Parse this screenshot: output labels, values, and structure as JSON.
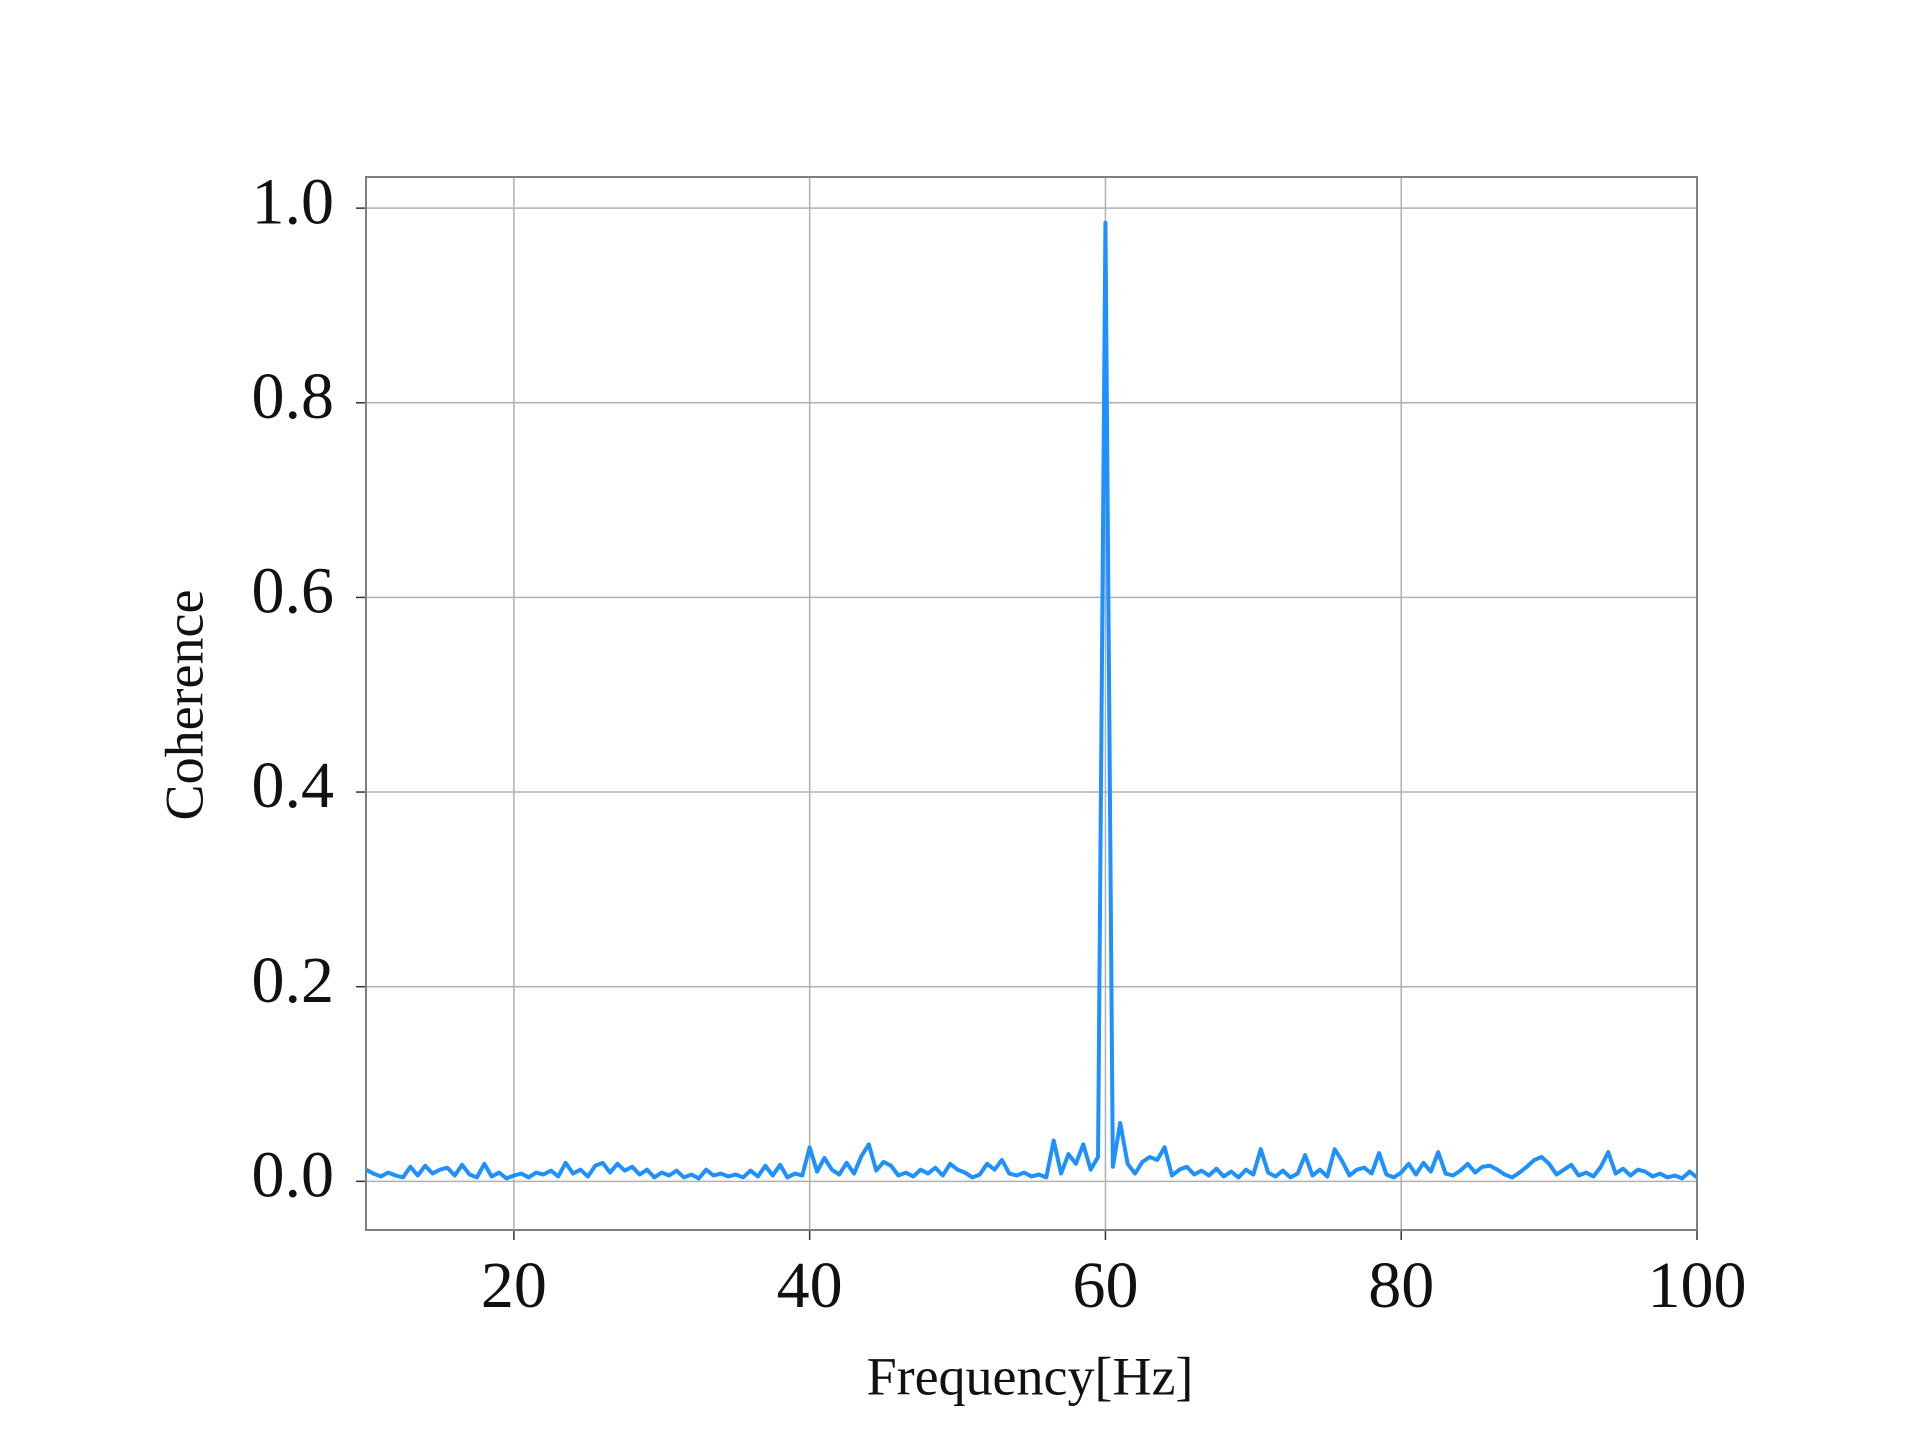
{
  "chart_data": {
    "type": "line",
    "xlabel": "Frequency[Hz]",
    "ylabel": "Coherence",
    "color": "#1e90ff",
    "grid": true,
    "xlim": [
      10,
      100
    ],
    "ylim": [
      -0.05,
      1.032
    ],
    "xticks": [
      20,
      40,
      60,
      80,
      100
    ],
    "yticks": [
      {
        "value": 0,
        "label": "0.0"
      },
      0.2,
      0.4,
      0.6,
      0.8,
      {
        "value": 1,
        "label": "1.0"
      }
    ],
    "x": [
      10,
      10.5,
      11,
      11.5,
      12,
      12.5,
      13,
      13.5,
      14,
      14.5,
      15,
      15.5,
      16,
      16.5,
      17,
      17.5,
      18,
      18.5,
      19,
      19.5,
      20,
      20.5,
      21,
      21.5,
      22,
      22.5,
      23,
      23.5,
      24,
      24.5,
      25,
      25.5,
      26,
      26.5,
      27,
      27.5,
      28,
      28.5,
      29,
      29.5,
      30,
      30.5,
      31,
      31.5,
      32,
      32.5,
      33,
      33.5,
      34,
      34.5,
      35,
      35.5,
      36,
      36.5,
      37,
      37.5,
      38,
      38.5,
      39,
      39.5,
      40,
      40.5,
      41,
      41.5,
      42,
      42.5,
      43,
      43.5,
      44,
      44.5,
      45,
      45.5,
      46,
      46.5,
      47,
      47.5,
      48,
      48.5,
      49,
      49.5,
      50,
      50.5,
      51,
      51.5,
      52,
      52.5,
      53,
      53.5,
      54,
      54.5,
      55,
      55.5,
      56,
      56.5,
      57,
      57.5,
      58,
      58.5,
      59,
      59.5,
      60,
      60.5,
      61,
      61.5,
      62,
      62.5,
      63,
      63.5,
      64,
      64.5,
      65,
      65.5,
      66,
      66.5,
      67,
      67.5,
      68,
      68.5,
      69,
      69.5,
      70,
      70.5,
      71,
      71.5,
      72,
      72.5,
      73,
      73.5,
      74,
      74.5,
      75,
      75.5,
      76,
      76.5,
      77,
      77.5,
      78,
      78.5,
      79,
      79.5,
      80,
      80.5,
      81,
      81.5,
      82,
      82.5,
      83,
      83.5,
      84,
      84.5,
      85,
      85.5,
      86,
      86.5,
      87,
      87.5,
      88,
      88.5,
      89,
      89.5,
      90,
      90.5,
      91,
      91.5,
      92,
      92.5,
      93,
      93.5,
      94,
      94.5,
      95,
      95.5,
      96,
      96.5,
      97,
      97.5,
      98,
      98.5,
      99,
      99.5,
      100
    ],
    "values": [
      0.012,
      0.008,
      0.005,
      0.009,
      0.006,
      0.004,
      0.015,
      0.006,
      0.016,
      0.008,
      0.012,
      0.014,
      0.006,
      0.017,
      0.007,
      0.004,
      0.018,
      0.005,
      0.009,
      0.003,
      0.006,
      0.008,
      0.004,
      0.009,
      0.007,
      0.011,
      0.005,
      0.019,
      0.008,
      0.012,
      0.005,
      0.016,
      0.019,
      0.009,
      0.018,
      0.011,
      0.015,
      0.007,
      0.012,
      0.004,
      0.009,
      0.006,
      0.011,
      0.004,
      0.007,
      0.003,
      0.012,
      0.006,
      0.008,
      0.005,
      0.007,
      0.004,
      0.011,
      0.005,
      0.016,
      0.006,
      0.017,
      0.004,
      0.008,
      0.006,
      0.035,
      0.01,
      0.024,
      0.012,
      0.007,
      0.019,
      0.008,
      0.026,
      0.038,
      0.011,
      0.02,
      0.016,
      0.006,
      0.009,
      0.005,
      0.012,
      0.008,
      0.014,
      0.006,
      0.018,
      0.012,
      0.009,
      0.004,
      0.007,
      0.018,
      0.012,
      0.022,
      0.008,
      0.006,
      0.009,
      0.005,
      0.007,
      0.004,
      0.042,
      0.008,
      0.028,
      0.018,
      0.038,
      0.012,
      0.025,
      0.985,
      0.015,
      0.06,
      0.018,
      0.008,
      0.02,
      0.025,
      0.022,
      0.035,
      0.006,
      0.012,
      0.015,
      0.007,
      0.011,
      0.006,
      0.013,
      0.005,
      0.01,
      0.004,
      0.012,
      0.007,
      0.033,
      0.009,
      0.005,
      0.011,
      0.004,
      0.008,
      0.027,
      0.006,
      0.012,
      0.005,
      0.033,
      0.021,
      0.006,
      0.012,
      0.014,
      0.008,
      0.029,
      0.007,
      0.004,
      0.009,
      0.018,
      0.007,
      0.019,
      0.01,
      0.03,
      0.008,
      0.006,
      0.011,
      0.018,
      0.009,
      0.015,
      0.016,
      0.012,
      0.007,
      0.004,
      0.009,
      0.015,
      0.022,
      0.025,
      0.018,
      0.007,
      0.012,
      0.017,
      0.006,
      0.009,
      0.005,
      0.015,
      0.03,
      0.008,
      0.013,
      0.006,
      0.012,
      0.01,
      0.005,
      0.008,
      0.004,
      0.006,
      0.003,
      0.01,
      0.004
    ]
  }
}
